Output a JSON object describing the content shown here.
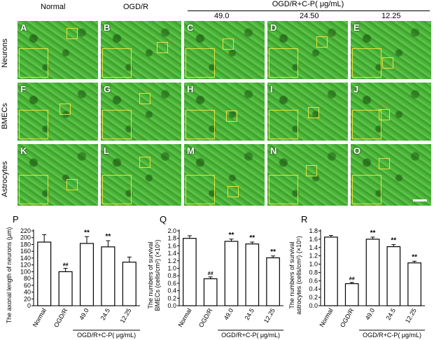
{
  "figure": {
    "column_headers": [
      "Normal",
      "OGD/R"
    ],
    "treatment_group_label": "OGD/R+C-P( μg/mL)",
    "doses": [
      "49.0",
      "24.50",
      "12.25"
    ],
    "row_headers": [
      "Neurons",
      "BMECs",
      "Astrocytes"
    ],
    "panel_letters": [
      [
        "A",
        "B",
        "C",
        "D",
        "E"
      ],
      [
        "F",
        "G",
        "H",
        "I",
        "J"
      ],
      [
        "K",
        "L",
        "M",
        "N",
        "O"
      ]
    ]
  },
  "colors": {
    "micrograph_green": "#4caf3a",
    "inset_yellow": "#e8e23a",
    "bar_fill": "#ffffff",
    "ink": "#000000"
  },
  "chart_data": [
    {
      "panel": "P",
      "type": "bar",
      "ylabel": "The axonal length of neurons (μm)",
      "categories": [
        "Normal",
        "OGD/R",
        "49.0",
        "24.5",
        "12.25"
      ],
      "group_label": "OGD/R+C-P( μg/mL)",
      "values": [
        187,
        100,
        183,
        173,
        128
      ],
      "errors": [
        22,
        10,
        20,
        18,
        15
      ],
      "markers": [
        "",
        "##",
        "**",
        "**",
        ""
      ],
      "ylim": [
        0,
        220
      ],
      "yticks": [
        0,
        20,
        40,
        60,
        80,
        100,
        120,
        140,
        160,
        180,
        200,
        220
      ]
    },
    {
      "panel": "Q",
      "type": "bar",
      "ylabel_line1": "The numbers of survival",
      "ylabel_line2": "BMECs (cells/cm²) (×10⁵)",
      "categories": [
        "Normal",
        "OGD/R",
        "49.0",
        "24.5",
        "12.25"
      ],
      "group_label": "OGD/R+C-P( μg/mL)",
      "values": [
        1.8,
        0.72,
        1.72,
        1.65,
        1.28
      ],
      "errors": [
        0.07,
        0.05,
        0.06,
        0.05,
        0.05
      ],
      "markers": [
        "",
        "##",
        "**",
        "**",
        "**"
      ],
      "ylim": [
        0,
        2.0
      ],
      "yticks": [
        0.0,
        0.2,
        0.4,
        0.6,
        0.8,
        1.0,
        1.2,
        1.4,
        1.6,
        1.8,
        2.0
      ]
    },
    {
      "panel": "R",
      "type": "bar",
      "ylabel_line1": "The numbers of survival",
      "ylabel_line2": "astrocytes (cells/cm²) (×10⁵)",
      "categories": [
        "Normal",
        "OGD/R",
        "49.0",
        "24.5",
        "12.25"
      ],
      "group_label": "OGD/R+C-P( μg/mL)",
      "values": [
        1.65,
        0.53,
        1.6,
        1.42,
        1.03
      ],
      "errors": [
        0.04,
        0.03,
        0.05,
        0.05,
        0.04
      ],
      "markers": [
        "",
        "##",
        "**",
        "**",
        "**"
      ],
      "ylim": [
        0,
        1.8
      ],
      "yticks": [
        0.0,
        0.2,
        0.4,
        0.6,
        0.8,
        1.0,
        1.2,
        1.4,
        1.6,
        1.8
      ]
    }
  ]
}
